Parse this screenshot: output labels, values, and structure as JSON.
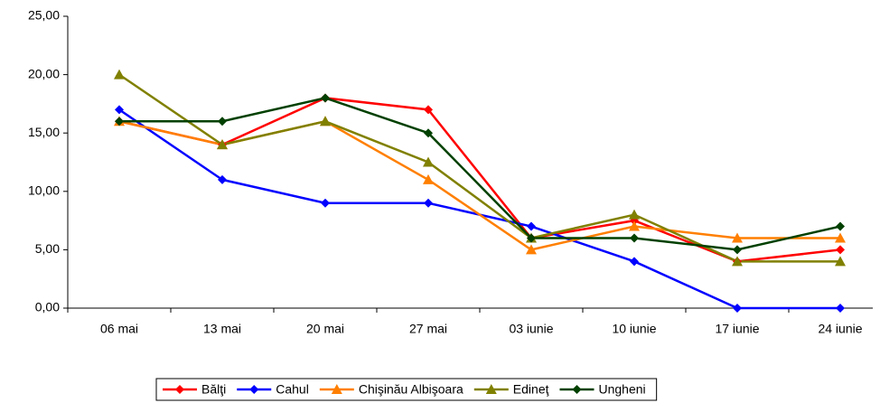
{
  "chart_data": {
    "type": "line",
    "categories": [
      "06 mai",
      "13 mai",
      "20 mai",
      "27 mai",
      "03 iunie",
      "10 iunie",
      "17 iunie",
      "24 iunie"
    ],
    "series": [
      {
        "name": "Bălţi",
        "color": "#ff0000",
        "marker": "diamond",
        "values": [
          16,
          14,
          18,
          17,
          6,
          7.5,
          4,
          5
        ]
      },
      {
        "name": "Cahul",
        "color": "#0000ff",
        "marker": "diamond",
        "values": [
          17,
          11,
          9,
          9,
          7,
          4,
          0,
          0
        ]
      },
      {
        "name": "Chişinău Albişoara",
        "color": "#ff7f00",
        "marker": "triangle",
        "values": [
          16,
          14,
          16,
          11,
          5,
          7,
          6,
          6
        ]
      },
      {
        "name": "Edineţ",
        "color": "#808000",
        "marker": "triangle",
        "values": [
          20,
          14,
          16,
          12.5,
          6,
          8,
          4,
          4
        ]
      },
      {
        "name": "Ungheni",
        "color": "#004000",
        "marker": "diamond",
        "values": [
          16,
          16,
          18,
          15,
          6,
          6,
          5,
          7
        ]
      }
    ],
    "ylim": [
      0,
      25
    ],
    "yticks": [
      {
        "value": 0,
        "label": "0,00"
      },
      {
        "value": 5,
        "label": "5,00"
      },
      {
        "value": 10,
        "label": "10,00"
      },
      {
        "value": 15,
        "label": "15,00"
      },
      {
        "value": 20,
        "label": "20,00"
      },
      {
        "value": 25,
        "label": "25,00"
      }
    ],
    "grid": false,
    "legend": "bottom"
  }
}
